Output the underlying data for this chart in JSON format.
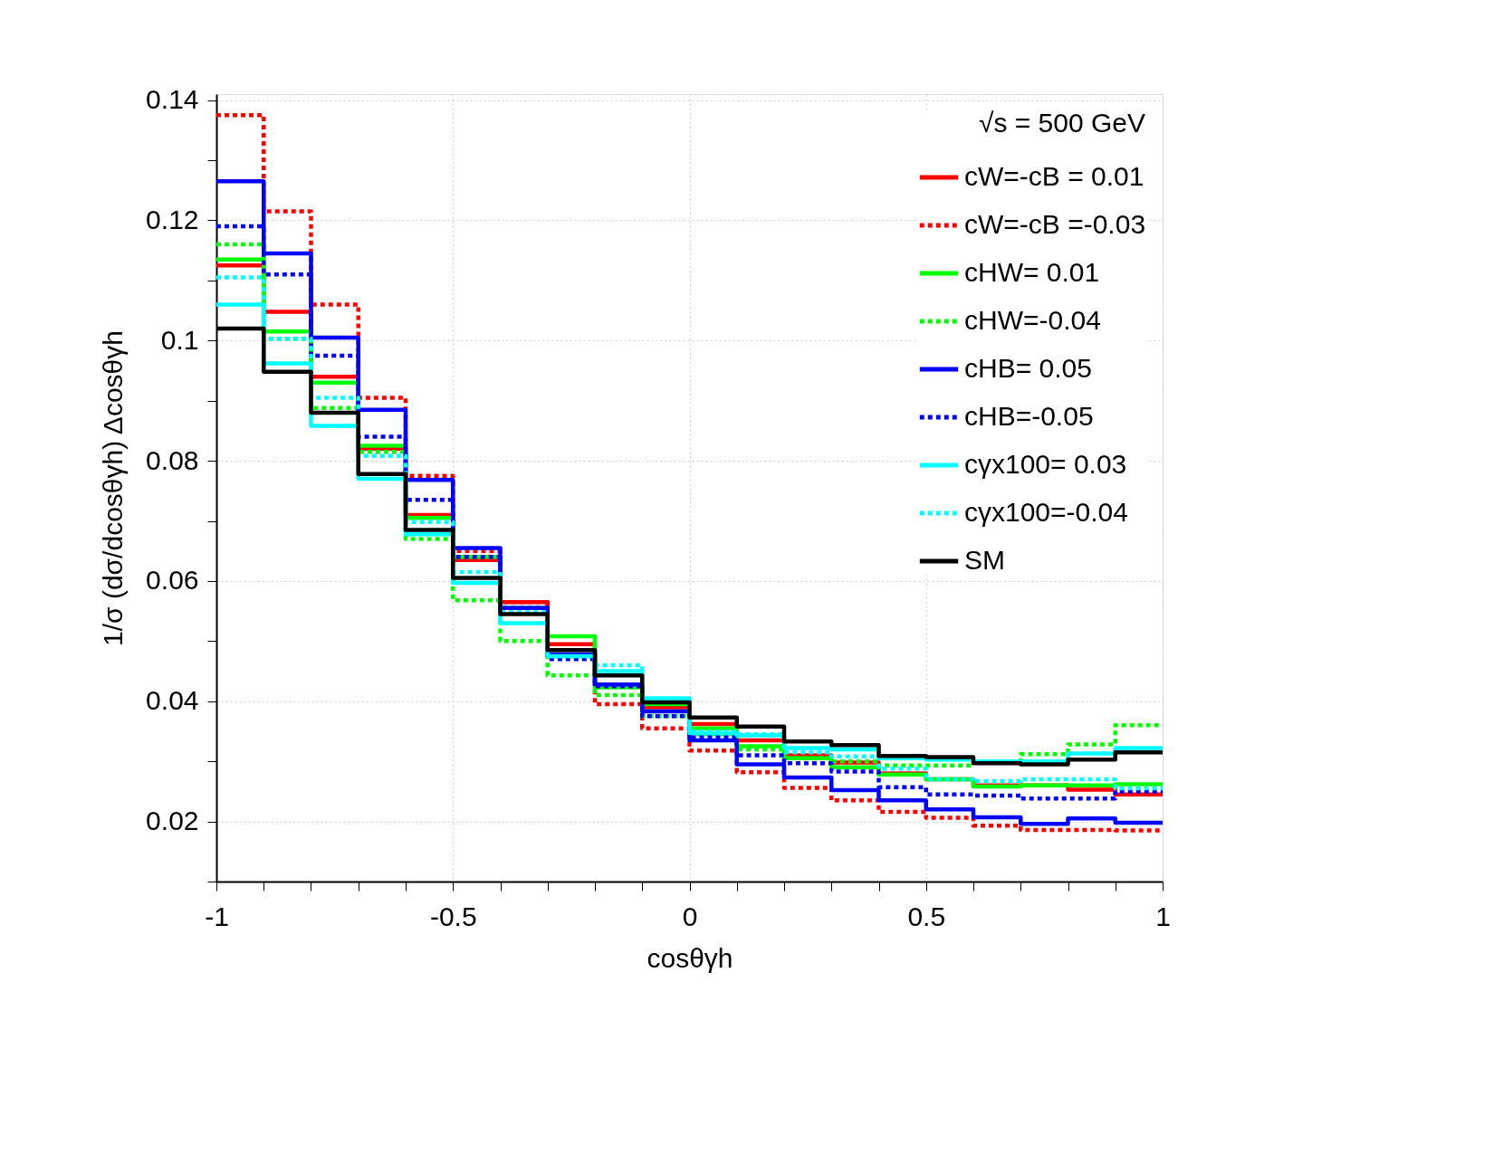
{
  "chart_data": {
    "type": "histogram",
    "xlabel": "cosθγh",
    "ylabel": "1/σ (dσ/dcosθγh) Δcosθγh",
    "legend_title": "√s = 500 GeV",
    "bins": [
      -1,
      -0.9,
      -0.8,
      -0.7,
      -0.6,
      -0.5,
      -0.4,
      -0.3,
      -0.2,
      -0.1,
      0,
      0.1,
      0.2,
      0.3,
      0.4,
      0.5,
      0.6,
      0.7,
      0.8,
      0.9,
      1
    ],
    "xlim": [
      -1,
      1
    ],
    "xticks": [
      -1,
      {
        "value": -0.9,
        "label": null
      },
      {
        "value": -0.8,
        "label": null
      },
      {
        "value": -0.7,
        "label": null
      },
      {
        "value": -0.6,
        "label": null
      },
      -0.5,
      {
        "value": -0.4,
        "label": null
      },
      {
        "value": -0.3,
        "label": null
      },
      {
        "value": -0.2,
        "label": null
      },
      {
        "value": -0.1,
        "label": null
      },
      0,
      {
        "value": 0.1,
        "label": null
      },
      {
        "value": 0.2,
        "label": null
      },
      {
        "value": 0.3,
        "label": null
      },
      {
        "value": 0.4,
        "label": null
      },
      0.5,
      {
        "value": 0.6,
        "label": null
      },
      {
        "value": 0.7,
        "label": null
      },
      {
        "value": 0.8,
        "label": null
      },
      {
        "value": 0.9,
        "label": null
      },
      1
    ],
    "ylim": [
      0.01,
      0.141
    ],
    "yticks": [
      {
        "value": 0.01,
        "label": null
      },
      0.02,
      {
        "value": 0.03,
        "label": null
      },
      0.04,
      {
        "value": 0.05,
        "label": null
      },
      0.06,
      {
        "value": 0.07,
        "label": null
      },
      0.08,
      {
        "value": 0.09,
        "label": null
      },
      0.1,
      {
        "value": 0.11,
        "label": null
      },
      0.12,
      {
        "value": 0.13,
        "label": null
      },
      0.14
    ],
    "grid": true,
    "legend": "top right",
    "series": [
      {
        "name": "cW=-cB = 0.01",
        "color": "#ff0000",
        "line_style": "solid",
        "values": [
          0.1125,
          0.1048,
          0.094,
          0.082,
          0.071,
          0.0635,
          0.0565,
          0.0495,
          0.0425,
          0.039,
          0.0362,
          0.0335,
          0.031,
          0.0298,
          0.028,
          0.027,
          0.026,
          0.026,
          0.0253,
          0.0245
        ]
      },
      {
        "name": "cW=-cB =-0.03",
        "color": "#fe0000",
        "line_style": "dashed",
        "values": [
          0.1375,
          0.1215,
          0.106,
          0.0905,
          0.0775,
          0.065,
          0.0565,
          0.0475,
          0.0395,
          0.0355,
          0.0318,
          0.0282,
          0.0256,
          0.0235,
          0.0216,
          0.0206,
          0.0193,
          0.0186,
          0.0186,
          0.0185
        ]
      },
      {
        "name": "cHW= 0.01",
        "color": "#00ff00",
        "line_style": "solid",
        "values": [
          0.1135,
          0.1015,
          0.093,
          0.0825,
          0.0705,
          0.064,
          0.0555,
          0.0508,
          0.0423,
          0.0395,
          0.0355,
          0.0325,
          0.0305,
          0.029,
          0.0278,
          0.027,
          0.0258,
          0.026,
          0.026,
          0.0262
        ]
      },
      {
        "name": "cHW=-0.04",
        "color": "#00fe00",
        "line_style": "dashed",
        "values": [
          0.116,
          0.1003,
          0.0888,
          0.0815,
          0.067,
          0.0568,
          0.05,
          0.0443,
          0.041,
          0.0375,
          0.0345,
          0.032,
          0.0305,
          0.03,
          0.0293,
          0.0293,
          0.0298,
          0.0312,
          0.0328,
          0.036
        ]
      },
      {
        "name": "cHB= 0.05",
        "color": "#0000ff",
        "line_style": "solid",
        "values": [
          0.1265,
          0.1145,
          0.1005,
          0.0885,
          0.0768,
          0.0655,
          0.0555,
          0.0478,
          0.0428,
          0.0383,
          0.0335,
          0.0295,
          0.0273,
          0.0252,
          0.0235,
          0.022,
          0.0207,
          0.0196,
          0.0205,
          0.0198
        ]
      },
      {
        "name": "cHB=-0.05",
        "color": "#0000fe",
        "line_style": "dashed",
        "values": [
          0.119,
          0.111,
          0.0975,
          0.084,
          0.0735,
          0.064,
          0.0555,
          0.047,
          0.0425,
          0.0375,
          0.034,
          0.031,
          0.0297,
          0.0283,
          0.0257,
          0.0245,
          0.0243,
          0.0238,
          0.0238,
          0.025
        ]
      },
      {
        "name": "cγx100= 0.03",
        "color": "#00ffff",
        "line_style": "solid",
        "values": [
          0.106,
          0.0962,
          0.0858,
          0.077,
          0.0678,
          0.0597,
          0.053,
          0.0475,
          0.045,
          0.0405,
          0.0347,
          0.0343,
          0.0322,
          0.032,
          0.0305,
          0.0303,
          0.03,
          0.03,
          0.0313,
          0.0322
        ]
      },
      {
        "name": "cγx100=-0.04",
        "color": "#00fefe",
        "line_style": "dashed",
        "values": [
          0.1105,
          0.1003,
          0.0905,
          0.0808,
          0.0698,
          0.0615,
          0.0548,
          0.0485,
          0.046,
          0.04,
          0.035,
          0.0345,
          0.0315,
          0.0308,
          0.0288,
          0.027,
          0.0267,
          0.027,
          0.027,
          0.0255
        ]
      },
      {
        "name": "SM",
        "color": "#000000",
        "line_style": "solid",
        "values": [
          0.102,
          0.0948,
          0.088,
          0.0778,
          0.0685,
          0.0605,
          0.0545,
          0.0485,
          0.0443,
          0.0398,
          0.0373,
          0.0358,
          0.0333,
          0.0327,
          0.0309,
          0.0307,
          0.0297,
          0.0295,
          0.0303,
          0.0315
        ]
      }
    ]
  }
}
